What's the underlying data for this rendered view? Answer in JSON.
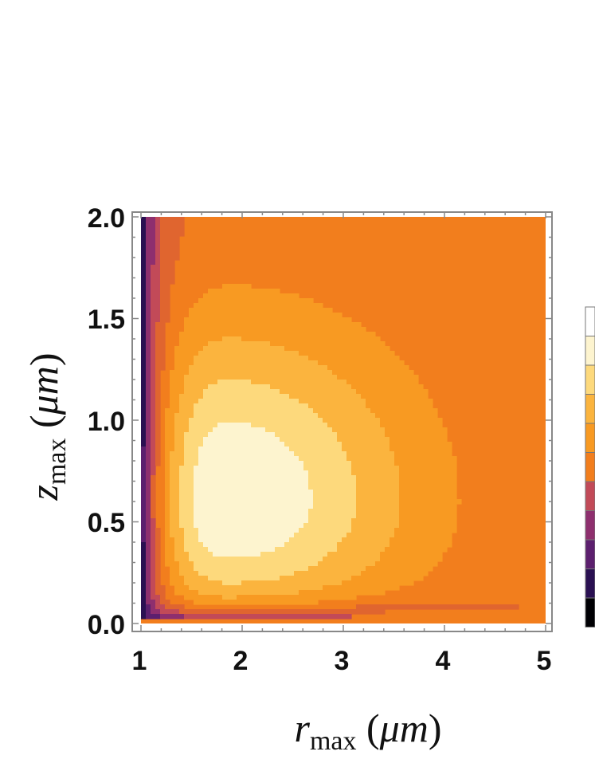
{
  "chart_data": {
    "type": "contour",
    "title": "",
    "xlabel": {
      "symbol": "r",
      "subscript": "max",
      "unit_open": " (",
      "unit_mu": "μm",
      "unit_close": ")"
    },
    "ylabel": {
      "symbol": "z",
      "subscript": "max",
      "unit_open": " (",
      "unit_mu": "μm",
      "unit_close": ")"
    },
    "xlim": [
      1,
      5
    ],
    "ylim": [
      0,
      2
    ],
    "x_ticks": [
      1,
      2,
      3,
      4,
      5
    ],
    "x_tick_labels": [
      "1",
      "2",
      "3",
      "4",
      "5"
    ],
    "y_ticks": [
      0,
      0.5,
      1,
      1.5,
      2
    ],
    "y_tick_labels": [
      "0.0",
      "0.5",
      "1.0",
      "1.5",
      "2.0"
    ],
    "peak": {
      "r": 1.82,
      "z": 0.6
    },
    "levels": [
      0.1,
      0.2,
      0.3,
      0.4,
      0.5,
      0.6,
      0.7,
      0.8,
      0.9
    ],
    "palette": [
      "#000004",
      "#2a1052",
      "#5c1f6e",
      "#8e2f6e",
      "#c24a58",
      "#e0652f",
      "#f27e1d",
      "#f89a22",
      "#fbb43e",
      "#fdd97c",
      "#fdf4cf",
      "#ffffff"
    ],
    "colorbar_colors": [
      "#ffffff",
      "#fdf4cf",
      "#fdd97c",
      "#fbb43e",
      "#f89a22",
      "#f27e1d",
      "#c24a58",
      "#8e2f6e",
      "#5c1f6e",
      "#2a1052",
      "#000004"
    ]
  }
}
